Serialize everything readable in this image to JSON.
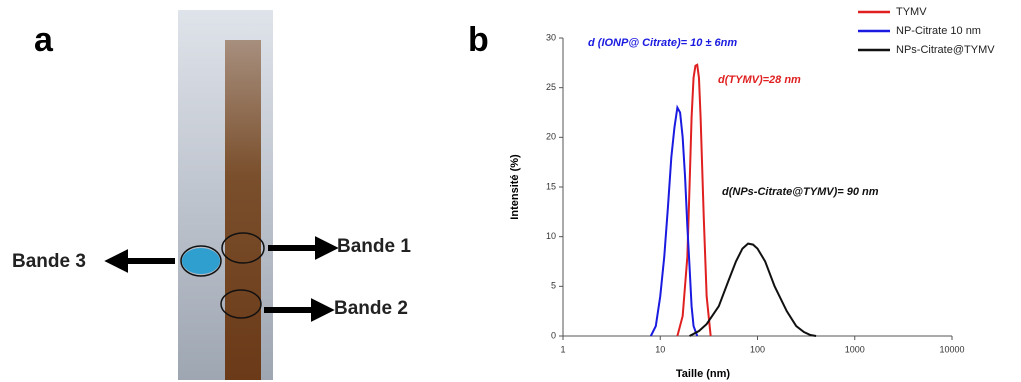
{
  "panel_a": {
    "label": "a",
    "bands": [
      "Bande 3",
      "Bande 1",
      "Bande 2"
    ]
  },
  "panel_b_label": "b",
  "chart_data": {
    "type": "line",
    "xlabel": "Taille (nm)",
    "ylabel": "Intensité (%)",
    "xscale": "log",
    "xlim": [
      1,
      10000
    ],
    "xticks": [
      1,
      10,
      100,
      1000,
      10000
    ],
    "ylim": [
      0,
      30
    ],
    "yticks": [
      0,
      5,
      10,
      15,
      20,
      25,
      30
    ],
    "series": [
      {
        "name": "TYMV",
        "color": "#e02020",
        "x": [
          15,
          17,
          19,
          20,
          21,
          22,
          23,
          24,
          25,
          26,
          28,
          30,
          33
        ],
        "values": [
          0,
          2,
          8,
          15,
          22,
          26,
          27.2,
          27.3,
          26,
          22,
          12,
          4,
          0
        ]
      },
      {
        "name": "NP-Citrate 10 nm",
        "color": "#1a1ae0",
        "x": [
          8,
          9,
          10,
          11,
          12,
          13,
          14,
          15,
          16,
          17,
          18,
          19,
          20,
          21,
          22,
          24
        ],
        "values": [
          0,
          1,
          4,
          8,
          13,
          18,
          21,
          23,
          22.5,
          20,
          16,
          11,
          7,
          3,
          1,
          0
        ]
      },
      {
        "name": "NPs-Citrate@TYMV",
        "color": "#111111",
        "x": [
          20,
          25,
          30,
          40,
          50,
          60,
          70,
          80,
          90,
          100,
          120,
          150,
          200,
          250,
          300,
          350,
          400
        ],
        "values": [
          0,
          0.5,
          1.2,
          3,
          5.5,
          7.5,
          8.8,
          9.3,
          9.2,
          8.8,
          7.5,
          5,
          2.5,
          1,
          0.4,
          0.1,
          0
        ]
      }
    ],
    "annotations": [
      {
        "text": "d (IONP@ Citrate)= 10 ± 6nm",
        "color": "#1a1ae0"
      },
      {
        "text": "d(TYMV)=28 nm",
        "color": "#e02020"
      },
      {
        "text": "d(NPs-Citrate@TYMV)= 90 nm",
        "color": "#111111"
      }
    ]
  }
}
